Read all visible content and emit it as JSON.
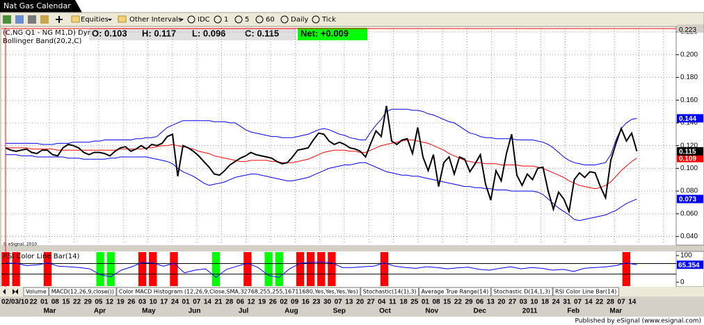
{
  "window": {
    "title": "Nat Gas Calendar"
  },
  "toolbar": {
    "items": [
      "Equities",
      "Other Intervals",
      "IDC",
      "1",
      "5",
      "60",
      "Daily",
      "Tick"
    ]
  },
  "chart_data": [
    {
      "type": "line",
      "legend_text": "(C,NG Q1 - NG M1,D) Dyr",
      "indicator": "Bollinger Band(20,2,C)",
      "ohlc": [
        "O: 0.103",
        "H: 0.117",
        "L: 0.096",
        "C: 0.115"
      ],
      "net": "Net: +0.009",
      "copyright": "© eSignal, 2010",
      "ylim": [
        0.033,
        0.2237
      ],
      "yticks": [
        {
          "value": 0.04,
          "label": "0.040"
        },
        {
          "value": 0.06,
          "label": "0.060"
        },
        {
          "value": 0.08,
          "label": "0.080"
        },
        {
          "value": 0.1,
          "label": "0.100"
        },
        {
          "value": 0.12,
          "label": "0.120"
        },
        {
          "value": 0.14,
          "label": "0.140"
        },
        {
          "value": 0.16,
          "label": "0.160"
        },
        {
          "value": 0.18,
          "label": "0.180"
        },
        {
          "value": 0.2,
          "label": "0.200"
        },
        {
          "value": 0.22,
          "label": "0.220"
        }
      ],
      "high": {
        "value": 0.223,
        "label": "0.223"
      },
      "grid": true,
      "series": [
        {
          "color": "#0000ff",
          "marker": {
            "value": 0.144,
            "label": "0.144"
          },
          "values": [
            0.122,
            0.122,
            0.122,
            0.122,
            0.122,
            0.122,
            0.122,
            0.121,
            0.121,
            0.121,
            0.122,
            0.122,
            0.122,
            0.123,
            0.123,
            0.123,
            0.123,
            0.124,
            0.124,
            0.125,
            0.125,
            0.125,
            0.125,
            0.125,
            0.125,
            0.126,
            0.126,
            0.127,
            0.127,
            0.128,
            0.132,
            0.136,
            0.138,
            0.14,
            0.142,
            0.142,
            0.142,
            0.142,
            0.142,
            0.142,
            0.141,
            0.141,
            0.141,
            0.14,
            0.14,
            0.137,
            0.134,
            0.132,
            0.131,
            0.13,
            0.129,
            0.128,
            0.128,
            0.127,
            0.127,
            0.127,
            0.128,
            0.129,
            0.13,
            0.132,
            0.134,
            0.135,
            0.134,
            0.132,
            0.13,
            0.129,
            0.127,
            0.126,
            0.125,
            0.125,
            0.132,
            0.138,
            0.143,
            0.15,
            0.152,
            0.152,
            0.152,
            0.152,
            0.151,
            0.151,
            0.15,
            0.148,
            0.147,
            0.145,
            0.143,
            0.141,
            0.14,
            0.137,
            0.134,
            0.131,
            0.13,
            0.128,
            0.127,
            0.127,
            0.126,
            0.126,
            0.126,
            0.126,
            0.125,
            0.125,
            0.125,
            0.125,
            0.124,
            0.123,
            0.121,
            0.118,
            0.114,
            0.11,
            0.107,
            0.105,
            0.104,
            0.103,
            0.103,
            0.103,
            0.104,
            0.105,
            0.112,
            0.125,
            0.135,
            0.14,
            0.143,
            0.144
          ]
        },
        {
          "color": "#ff0000",
          "marker": {
            "value": 0.109,
            "label": "0.109"
          },
          "values": [
            0.118,
            0.118,
            0.118,
            0.118,
            0.118,
            0.117,
            0.117,
            0.117,
            0.117,
            0.117,
            0.116,
            0.116,
            0.116,
            0.116,
            0.116,
            0.116,
            0.116,
            0.116,
            0.116,
            0.116,
            0.116,
            0.116,
            0.117,
            0.117,
            0.117,
            0.117,
            0.117,
            0.118,
            0.118,
            0.119,
            0.12,
            0.12,
            0.121,
            0.12,
            0.119,
            0.118,
            0.117,
            0.115,
            0.114,
            0.113,
            0.111,
            0.11,
            0.109,
            0.108,
            0.107,
            0.106,
            0.106,
            0.107,
            0.107,
            0.107,
            0.107,
            0.106,
            0.106,
            0.105,
            0.105,
            0.105,
            0.106,
            0.107,
            0.108,
            0.11,
            0.112,
            0.114,
            0.115,
            0.116,
            0.116,
            0.116,
            0.115,
            0.115,
            0.114,
            0.114,
            0.116,
            0.118,
            0.12,
            0.121,
            0.122,
            0.123,
            0.124,
            0.125,
            0.125,
            0.124,
            0.123,
            0.122,
            0.12,
            0.118,
            0.116,
            0.113,
            0.111,
            0.109,
            0.107,
            0.106,
            0.105,
            0.105,
            0.104,
            0.104,
            0.104,
            0.103,
            0.103,
            0.103,
            0.103,
            0.102,
            0.102,
            0.102,
            0.101,
            0.1,
            0.098,
            0.096,
            0.094,
            0.092,
            0.089,
            0.087,
            0.085,
            0.084,
            0.083,
            0.082,
            0.083,
            0.085,
            0.088,
            0.093,
            0.098,
            0.102,
            0.106,
            0.109
          ]
        },
        {
          "color": "#0000ff",
          "marker": {
            "value": 0.073,
            "label": "0.073"
          },
          "values": [
            0.112,
            0.112,
            0.112,
            0.111,
            0.111,
            0.111,
            0.11,
            0.11,
            0.11,
            0.11,
            0.11,
            0.11,
            0.109,
            0.109,
            0.109,
            0.108,
            0.108,
            0.108,
            0.108,
            0.108,
            0.109,
            0.109,
            0.11,
            0.11,
            0.11,
            0.11,
            0.11,
            0.11,
            0.109,
            0.108,
            0.107,
            0.106,
            0.104,
            0.1,
            0.097,
            0.095,
            0.093,
            0.09,
            0.087,
            0.085,
            0.086,
            0.087,
            0.088,
            0.09,
            0.092,
            0.093,
            0.094,
            0.095,
            0.095,
            0.094,
            0.093,
            0.092,
            0.091,
            0.09,
            0.089,
            0.089,
            0.09,
            0.091,
            0.092,
            0.094,
            0.096,
            0.098,
            0.1,
            0.101,
            0.102,
            0.103,
            0.103,
            0.104,
            0.105,
            0.105,
            0.103,
            0.101,
            0.099,
            0.097,
            0.096,
            0.095,
            0.094,
            0.094,
            0.093,
            0.093,
            0.092,
            0.091,
            0.09,
            0.089,
            0.088,
            0.087,
            0.086,
            0.085,
            0.084,
            0.084,
            0.083,
            0.083,
            0.082,
            0.082,
            0.081,
            0.081,
            0.081,
            0.08,
            0.08,
            0.08,
            0.08,
            0.08,
            0.079,
            0.077,
            0.073,
            0.069,
            0.065,
            0.062,
            0.059,
            0.055,
            0.054,
            0.055,
            0.056,
            0.057,
            0.058,
            0.059,
            0.061,
            0.063,
            0.066,
            0.069,
            0.071,
            0.073
          ]
        },
        {
          "color": "#000000",
          "marker": {
            "value": 0.115,
            "label": "0.115"
          },
          "values": [
            0.118,
            0.116,
            0.115,
            0.116,
            0.117,
            0.114,
            0.113,
            0.116,
            0.116,
            0.112,
            0.111,
            0.118,
            0.121,
            0.12,
            0.118,
            0.114,
            0.112,
            0.114,
            0.114,
            0.113,
            0.111,
            0.115,
            0.118,
            0.119,
            0.115,
            0.117,
            0.12,
            0.117,
            0.121,
            0.12,
            0.122,
            0.128,
            0.13,
            0.093,
            0.12,
            0.118,
            0.115,
            0.111,
            0.106,
            0.101,
            0.095,
            0.094,
            0.098,
            0.103,
            0.106,
            0.109,
            0.111,
            0.114,
            0.112,
            0.111,
            0.11,
            0.109,
            0.106,
            0.104,
            0.105,
            0.11,
            0.116,
            0.117,
            0.118,
            0.125,
            0.131,
            0.13,
            0.124,
            0.121,
            0.123,
            0.121,
            0.118,
            0.117,
            0.115,
            0.11,
            0.122,
            0.133,
            0.128,
            0.155,
            0.124,
            0.121,
            0.125,
            0.126,
            0.113,
            0.136,
            0.11,
            0.098,
            0.112,
            0.084,
            0.105,
            0.11,
            0.095,
            0.11,
            0.108,
            0.097,
            0.104,
            0.112,
            0.086,
            0.072,
            0.098,
            0.089,
            0.113,
            0.13,
            0.094,
            0.085,
            0.095,
            0.09,
            0.1,
            0.101,
            0.08,
            0.064,
            0.079,
            0.073,
            0.062,
            0.09,
            0.096,
            0.092,
            0.097,
            0.096,
            0.084,
            0.074,
            0.107,
            0.122,
            0.135,
            0.124,
            0.131,
            0.115
          ]
        }
      ]
    },
    {
      "type": "line",
      "title": "RSI Color Line Bar(14)",
      "ylim": [
        -15,
        113
      ],
      "yticks": [
        100,
        0
      ],
      "levels": [
        70,
        30
      ],
      "color": "#0000ff",
      "overbought_color": "#ff0000",
      "oversold_color": "#00ff00",
      "marker": {
        "value": 65.354,
        "label": "65.354"
      },
      "values": [
        72,
        71,
        62,
        65,
        72,
        60,
        58,
        55,
        50,
        28,
        20,
        45,
        58,
        74,
        72,
        60,
        71,
        35,
        45,
        50,
        18,
        48,
        60,
        71,
        55,
        25,
        18,
        50,
        71,
        74,
        76,
        73,
        55,
        55,
        58,
        60,
        72,
        60,
        55,
        52,
        58,
        55,
        50,
        54,
        56,
        48,
        45,
        52,
        58,
        50,
        55,
        52,
        45,
        48,
        40,
        52,
        55,
        57,
        62,
        72,
        65.354
      ]
    }
  ],
  "tabs": [
    "Volume",
    "MACD(12,26,9,close())",
    "Color MACD Histogram (12,26,9,Close,SMA,32768,255,255,16711680,Yes,Yes,Yes,Yes)",
    "Stochastic(14(1),3)",
    "Average True Range(14)",
    "Stochastic D(14,1,3)",
    "RSI Color Line Bar(14)"
  ],
  "x_axis": {
    "day_labels": [
      "02/03/10",
      "22",
      "01",
      "08",
      "15",
      "22",
      "29",
      "05",
      "12",
      "19",
      "26",
      "03",
      "10",
      "17",
      "24",
      "01",
      "07",
      "14",
      "21",
      "28",
      "06",
      "12",
      "19",
      "26",
      "02",
      "09",
      "16",
      "23",
      "30",
      "07",
      "13",
      "20",
      "27",
      "04",
      "11",
      "18",
      "25",
      "01",
      "08",
      "15",
      "22",
      "29",
      "06",
      "13",
      "20",
      "27",
      "03",
      "10",
      "18",
      "24",
      "31",
      "07",
      "14",
      "22",
      "28",
      "07",
      "14"
    ],
    "month_labels": [
      "Mar",
      "Apr",
      "May",
      "Jun",
      "Jul",
      "Aug",
      "Sep",
      "Oct",
      "Nov",
      "Dec",
      "2011",
      "Feb",
      "Mar"
    ]
  },
  "footer": "Published by eSignal (www.esignal.com)"
}
